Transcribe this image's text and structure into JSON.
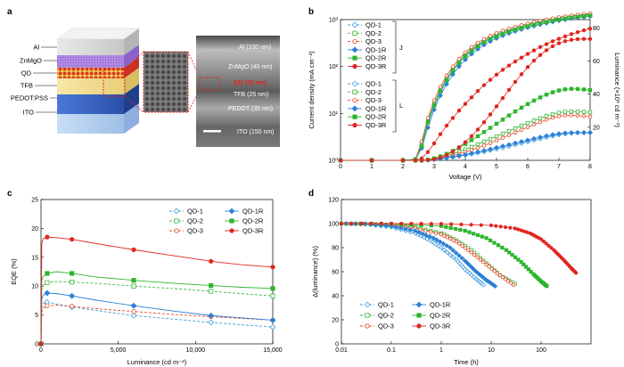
{
  "panels": {
    "a": "a",
    "b": "b",
    "c": "c",
    "d": "d"
  },
  "colors": {
    "qd1": "#3a9de0",
    "qd2": "#3cb83c",
    "qd3": "#e64b2a",
    "qd1r": "#2f7fd6",
    "qd2r": "#2eb52e",
    "qd3r": "#e0261e"
  },
  "device": {
    "layers": [
      "Al",
      "ZnMgO",
      "QD",
      "TFB",
      "PEDOT:PSS",
      "ITO"
    ],
    "tem_labels": [
      "Al (100 nm)",
      "ZnMgO (40 nm)",
      "QD (20 nm)",
      "TFB (25 nm)",
      "PEDOT (35 nm)",
      "ITO (150 nm)"
    ]
  },
  "chart_data": [
    {
      "panel": "b",
      "type": "line",
      "xlabel": "Voltage (V)",
      "ylabel_left": "Current density (mA cm⁻²)",
      "ylabel_right": "Luminance (×10³ cd m⁻²)",
      "xlim": [
        0,
        8
      ],
      "xticks": [
        "0",
        "1",
        "2",
        "3",
        "4",
        "5",
        "6",
        "7",
        "8"
      ],
      "ylim_left_log": [
        0,
        3
      ],
      "yticks_left": [
        "10⁰",
        "10¹",
        "10²",
        "10³"
      ],
      "ylim_right": [
        0,
        85
      ],
      "yticks_right": [
        "20",
        "40",
        "60",
        "80"
      ],
      "group_labels": {
        "J": "J",
        "L": "L"
      },
      "x": [
        0,
        1,
        2,
        2.4,
        2.6,
        2.8,
        3,
        3.2,
        3.4,
        3.6,
        3.8,
        4,
        4.2,
        4.4,
        4.6,
        4.8,
        5,
        5.2,
        5.4,
        5.6,
        5.8,
        6,
        6.2,
        6.4,
        6.6,
        6.8,
        7,
        7.2,
        7.4,
        7.6,
        7.8,
        8
      ],
      "series_J": [
        {
          "name": "QD-1",
          "values": [
            1,
            1,
            1,
            1.05,
            2,
            6,
            14,
            28,
            50,
            80,
            120,
            170,
            220,
            280,
            340,
            400,
            460,
            520,
            580,
            640,
            700,
            760,
            820,
            880,
            940,
            1000,
            1060,
            1110,
            1160,
            1200,
            1240,
            1280
          ]
        },
        {
          "name": "QD-2",
          "values": [
            1,
            1,
            1,
            1.05,
            2.2,
            7,
            16,
            32,
            56,
            88,
            130,
            180,
            235,
            295,
            355,
            420,
            480,
            540,
            600,
            660,
            720,
            780,
            840,
            900,
            960,
            1020,
            1080,
            1130,
            1180,
            1220,
            1260,
            1300
          ]
        },
        {
          "name": "QD-3",
          "values": [
            1,
            1,
            1,
            1.05,
            2.5,
            8,
            19,
            37,
            64,
            100,
            145,
            200,
            260,
            320,
            385,
            450,
            515,
            580,
            640,
            700,
            760,
            820,
            880,
            940,
            1000,
            1060,
            1120,
            1170,
            1220,
            1270,
            1310,
            1350
          ]
        },
        {
          "name": "QD-1R",
          "values": [
            1,
            1,
            1,
            1.05,
            1.8,
            5,
            12,
            24,
            42,
            68,
            100,
            140,
            185,
            235,
            290,
            345,
            400,
            455,
            510,
            565,
            620,
            675,
            730,
            785,
            840,
            895,
            950,
            1000,
            1050,
            1090,
            1130,
            1170
          ]
        },
        {
          "name": "QD-2R",
          "values": [
            1,
            1,
            1,
            1.05,
            2,
            6.5,
            15,
            30,
            52,
            82,
            120,
            165,
            215,
            270,
            325,
            385,
            440,
            500,
            555,
            610,
            665,
            720,
            775,
            830,
            885,
            940,
            995,
            1045,
            1095,
            1140,
            1180,
            1220
          ]
        },
        {
          "name": "QD-3R",
          "values": [
            1,
            1,
            1,
            1,
            1.1,
            1.5,
            2.3,
            3.6,
            5.5,
            8,
            11.5,
            16,
            22,
            30,
            40,
            52,
            67,
            85,
            105,
            128,
            155,
            185,
            220,
            260,
            300,
            345,
            390,
            440,
            490,
            540,
            590,
            640
          ]
        }
      ],
      "series_L": [
        {
          "name": "QD-1",
          "values": [
            0,
            0,
            0,
            0,
            0,
            0.2,
            0.5,
            0.9,
            1.4,
            1.9,
            2.5,
            3.1,
            3.8,
            4.5,
            5.2,
            6,
            6.8,
            7.6,
            8.5,
            9.4,
            10.3,
            11.2,
            12.1,
            13,
            13.9,
            14.7,
            15.4,
            16,
            16.4,
            16.6,
            16.6,
            16.6
          ]
        },
        {
          "name": "QD-2",
          "values": [
            0,
            0,
            0,
            0,
            0,
            0.3,
            0.9,
            1.7,
            2.7,
            3.9,
            5.2,
            6.6,
            8.1,
            9.7,
            11.3,
            12.9,
            14.5,
            16.1,
            17.7,
            19.3,
            20.9,
            22.5,
            24,
            25.4,
            26.7,
            27.8,
            28.7,
            29.3,
            29.5,
            29.4,
            29.2,
            29
          ]
        },
        {
          "name": "QD-3",
          "values": [
            0,
            0,
            0,
            0,
            0,
            0.25,
            0.7,
            1.3,
            2,
            2.9,
            3.9,
            5,
            6.2,
            7.5,
            8.9,
            10.4,
            12,
            13.6,
            15.2,
            16.8,
            18.4,
            20,
            21.6,
            23.1,
            24.5,
            25.7,
            26.6,
            27.1,
            27.2,
            27,
            26.7,
            26.3
          ]
        },
        {
          "name": "QD-1R",
          "values": [
            0,
            0,
            0,
            0,
            0,
            0.2,
            0.5,
            1,
            1.5,
            2.1,
            2.8,
            3.5,
            4.3,
            5.1,
            5.9,
            6.8,
            7.7,
            8.6,
            9.5,
            10.4,
            11.3,
            12.2,
            13.1,
            14,
            14.8,
            15.5,
            16.1,
            16.5,
            16.7,
            16.8,
            16.8,
            16.8
          ]
        },
        {
          "name": "QD-2R",
          "values": [
            0,
            0,
            0,
            0,
            0,
            0.4,
            1.2,
            2.4,
            3.9,
            5.7,
            7.7,
            9.9,
            12.2,
            14.6,
            17.1,
            19.6,
            22.1,
            24.6,
            27.1,
            29.5,
            31.8,
            34,
            36.1,
            38,
            39.7,
            41.1,
            42.2,
            42.9,
            43.2,
            43.1,
            42.8,
            42.4
          ]
        },
        {
          "name": "QD-3R",
          "values": [
            0,
            0,
            0,
            0,
            0,
            0.2,
            0.7,
            1.7,
            3.2,
            5.3,
            7.9,
            11,
            14.6,
            18.6,
            23,
            27.7,
            32.6,
            37.6,
            42.6,
            47.4,
            52,
            56.3,
            60.2,
            63.6,
            66.5,
            68.9,
            70.7,
            72,
            72.8,
            73.2,
            73.3,
            73.3
          ]
        }
      ]
    },
    {
      "panel": "c",
      "type": "line",
      "xlabel": "Luminance (cd m⁻²)",
      "ylabel": "EQE (%)",
      "xlim": [
        0,
        15000
      ],
      "xticks": [
        "0",
        "5,000",
        "10,000",
        "15,000"
      ],
      "ylim": [
        0,
        25
      ],
      "yticks": [
        "0",
        "5",
        "10",
        "15",
        "20",
        "25"
      ],
      "x": [
        0,
        50,
        150,
        400,
        1000,
        2000,
        3500,
        6000,
        8500,
        11000,
        13000,
        15000
      ],
      "series": [
        {
          "name": "QD-1",
          "values": [
            0,
            6.5,
            7,
            7.2,
            6.9,
            6.4,
            5.8,
            4.9,
            4.3,
            3.7,
            3.3,
            2.9
          ]
        },
        {
          "name": "QD-2",
          "values": [
            0,
            9.5,
            10.2,
            10.6,
            10.8,
            10.7,
            10.5,
            10,
            9.6,
            9.1,
            8.7,
            8.3
          ]
        },
        {
          "name": "QD-3",
          "values": [
            0,
            5.5,
            6.2,
            6.6,
            6.7,
            6.5,
            6.1,
            5.6,
            5.1,
            4.7,
            4.4,
            4.1
          ]
        },
        {
          "name": "QD-1R",
          "values": [
            0,
            7.8,
            8.4,
            8.8,
            8.7,
            8.3,
            7.6,
            6.6,
            5.7,
            4.9,
            4.5,
            4.1
          ]
        },
        {
          "name": "QD-2R",
          "values": [
            0,
            11,
            11.7,
            12.2,
            12.5,
            12.2,
            11.6,
            11,
            10.5,
            10.1,
            9.8,
            9.6
          ]
        },
        {
          "name": "QD-3R",
          "values": [
            0,
            17.5,
            18.2,
            18.5,
            18.4,
            18.1,
            17.4,
            16.3,
            15.3,
            14.3,
            13.7,
            13.3
          ]
        }
      ]
    },
    {
      "panel": "d",
      "type": "line",
      "xlabel": "Time (h)",
      "ylabel": "Δ(luminance) (%)",
      "xscale": "log",
      "xlim": [
        0.01,
        1000
      ],
      "xticks": [
        "0.01",
        "0.1",
        "1",
        "10",
        "100"
      ],
      "ylim": [
        0,
        120
      ],
      "yticks": [
        "0",
        "20",
        "40",
        "60",
        "80",
        "100",
        "120"
      ],
      "series": [
        {
          "name": "QD-1",
          "x": [
            0.01,
            0.03,
            0.1,
            0.3,
            0.6,
            1,
            2,
            3,
            5,
            7
          ],
          "values": [
            100,
            99.5,
            97,
            92,
            86,
            80,
            70,
            62,
            54,
            49
          ]
        },
        {
          "name": "QD-2",
          "x": [
            0.01,
            0.03,
            0.1,
            0.3,
            1,
            2,
            4,
            8,
            15,
            30
          ],
          "values": [
            100,
            99.8,
            99,
            97,
            92,
            86,
            78,
            67,
            57,
            50
          ]
        },
        {
          "name": "QD-3",
          "x": [
            0.01,
            0.03,
            0.1,
            0.3,
            1,
            2,
            4,
            8,
            15,
            28
          ],
          "values": [
            100,
            99.8,
            99,
            96,
            91,
            85,
            76,
            66,
            57,
            49
          ]
        },
        {
          "name": "QD-1R",
          "x": [
            0.01,
            0.03,
            0.1,
            0.3,
            0.7,
            1.5,
            3,
            5,
            8,
            12
          ],
          "values": [
            100,
            99.7,
            98,
            94,
            88,
            80,
            69,
            60,
            53,
            48
          ]
        },
        {
          "name": "QD-2R",
          "x": [
            0.01,
            0.1,
            1,
            3,
            8,
            20,
            40,
            70,
            100,
            130
          ],
          "values": [
            100,
            99.8,
            98,
            94,
            88,
            78,
            68,
            58,
            52,
            48
          ]
        },
        {
          "name": "QD-3R",
          "x": [
            0.01,
            0.1,
            1,
            10,
            30,
            60,
            100,
            180,
            280,
            400,
            500
          ],
          "values": [
            100,
            100,
            99.8,
            98.5,
            96,
            92,
            87,
            78,
            70,
            63,
            59
          ]
        }
      ]
    }
  ]
}
